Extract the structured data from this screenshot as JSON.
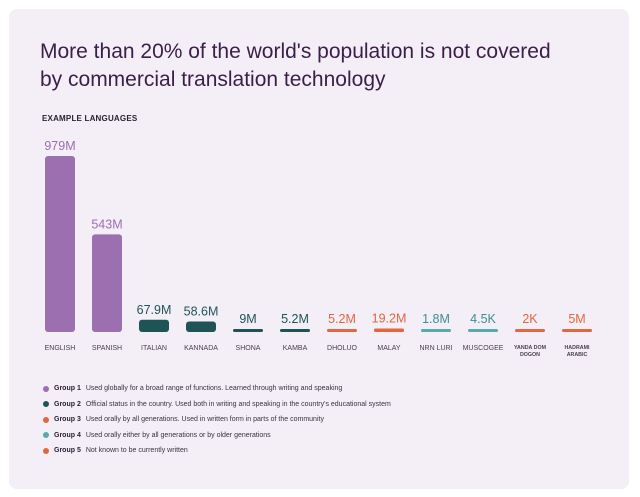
{
  "title": "More than 20% of the world's population is not covered by commercial translation technology",
  "subheading": "EXAMPLE LANGUAGES",
  "colors": {
    "background": "#f4eef6",
    "group1": "#9b6fb0",
    "group2": "#1f5457",
    "group3": "#e2663f",
    "group4": "#5aa9ab",
    "group5": "#e2663f"
  },
  "legend": [
    {
      "name": "Group 1",
      "text": "Used globally for a broad range of functions. Learned through writing and speaking",
      "color": "#9b6fb0"
    },
    {
      "name": "Group 2",
      "text": "Official status in the country. Used both in writing and speaking in the  country's educational system",
      "color": "#1f5457"
    },
    {
      "name": "Group 3",
      "text": "Used orally by all generations. Used in written form in parts of the community",
      "color": "#e2663f"
    },
    {
      "name": "Group 4",
      "text": "Used orally either by all generations or by older generations",
      "color": "#5aa9ab"
    },
    {
      "name": "Group 5",
      "text": "Not known to be currently written",
      "color": "#e2663f"
    }
  ],
  "chart_data": {
    "type": "bar",
    "title": "More than 20% of the world's population is not covered by commercial translation technology",
    "xlabel": "",
    "ylabel": "",
    "ylim": [
      0,
      979
    ],
    "grid": false,
    "categories": [
      "ENGLISH",
      "SPANISH",
      "ITALIAN",
      "KANNADA",
      "SHONA",
      "KAMBA",
      "DHOLUO",
      "MALAY",
      "NRN LURI",
      "MUSCOGEE",
      "YANDA DOM DOGON",
      "HADRAMI ARABIC"
    ],
    "values": [
      979,
      543,
      67.9,
      58.6,
      9,
      5.2,
      5.2,
      19.2,
      1.8,
      0.0045,
      0.002,
      5
    ],
    "labels": [
      "979M",
      "543M",
      "67.9M",
      "58.6M",
      "9M",
      "5.2M",
      "5.2M",
      "19.2M",
      "1.8M",
      "4.5K",
      "2K",
      "5M"
    ],
    "groups": [
      1,
      1,
      2,
      2,
      2,
      2,
      3,
      3,
      4,
      4,
      5,
      5
    ]
  }
}
